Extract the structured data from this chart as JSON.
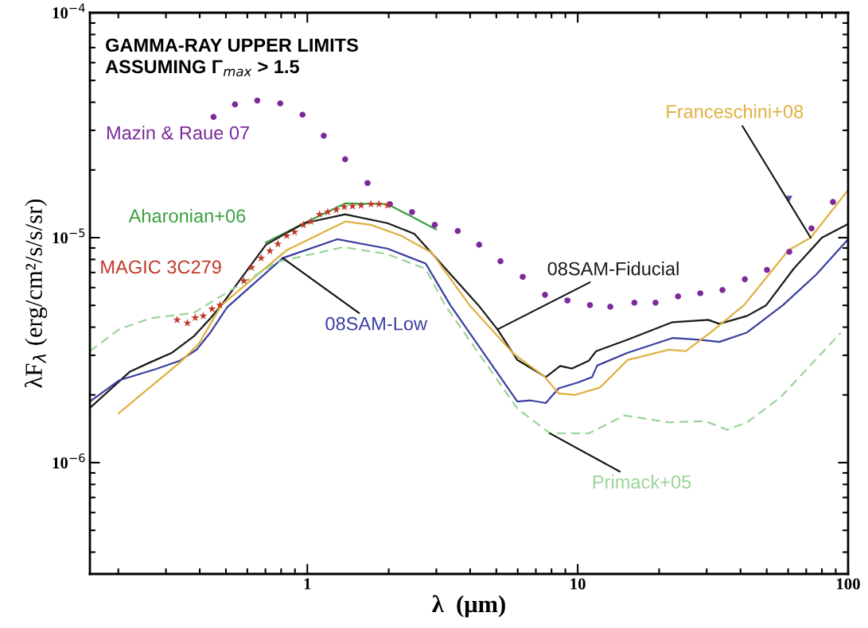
{
  "chart_data": {
    "type": "line",
    "title": "GAMMA-RAY UPPER LIMITS\nASSUMING Γ$_{max}$ > 1.5",
    "xlabel": "λ  (μm)",
    "ylabel": "λF$_{λ}$ (erg/cm²/s/s/sr)",
    "log": "xy",
    "xlim": [
      0.157,
      100
    ],
    "ylim": [
      3.2e-07,
      0.0001
    ],
    "xticks": [
      1,
      10,
      100
    ],
    "yticks": [
      {
        "value": 1e-06,
        "label": "10$^{−6}$"
      },
      {
        "value": 1e-05,
        "label": "10$^{−5}$"
      },
      {
        "value": 0.0001,
        "label": "10$^{−4}$"
      }
    ],
    "series": [
      {
        "name": "Mazin & Raue 07",
        "type": "scatter",
        "marker": "circle",
        "color": "#7b2a9a",
        "x": [
          0.45,
          0.54,
          0.653,
          0.794,
          0.96,
          1.15,
          1.38,
          1.67,
          2.02,
          2.44,
          2.96,
          3.6,
          4.32,
          5.18,
          6.26,
          7.57,
          9.16,
          11.1,
          13.2,
          16.2,
          19.4,
          23.5,
          28.4,
          34.3,
          41.5,
          50.1,
          60.6,
          73.2,
          87.9
        ],
        "values": [
          3.44e-05,
          3.91e-05,
          4.07e-05,
          3.95e-05,
          3.52e-05,
          2.84e-05,
          2.23e-05,
          1.75e-05,
          1.41e-05,
          1.3e-05,
          1.14e-05,
          1.07e-05,
          9.3e-06,
          7.86e-06,
          6.7e-06,
          5.57e-06,
          5.26e-06,
          5.01e-06,
          4.93e-06,
          5.14e-06,
          5.14e-06,
          5.48e-06,
          5.66e-06,
          5.85e-06,
          6.53e-06,
          7.19e-06,
          8.65e-06,
          1.1e-05,
          1.44e-05
        ]
      },
      {
        "type": "scatter",
        "marker": "triangle",
        "color": "#5050a0",
        "x": [
          60.6
        ],
        "values": [
          1.49e-05
        ]
      },
      {
        "name": "Aharonian+06",
        "line_style": "solid",
        "color": "#3aa040",
        "x": [
          0.703,
          0.973,
          1.38,
          1.98,
          2.99
        ],
        "values": [
          9.53e-06,
          1.16e-05,
          1.42e-05,
          1.41e-05,
          1.09e-05
        ]
      },
      {
        "name": "MAGIC 3C279",
        "type": "scatter",
        "marker": "star",
        "color": "#c0392b",
        "x": [
          0.33,
          0.36,
          0.385,
          0.412,
          0.444,
          0.475,
          0.582,
          0.622,
          0.675,
          0.727,
          0.778,
          0.839,
          0.897,
          0.967,
          1.03,
          1.11,
          1.19,
          1.28,
          1.37,
          1.47,
          1.58,
          1.72,
          1.84,
          1.98
        ],
        "values": [
          4.31e-06,
          4.17e-06,
          4.41e-06,
          4.49e-06,
          4.82e-06,
          5.01e-06,
          6.43e-06,
          7.38e-06,
          8.12e-06,
          8.73e-06,
          9.38e-06,
          1.02e-05,
          1.06e-05,
          1.14e-05,
          1.18e-05,
          1.27e-05,
          1.3e-05,
          1.33e-05,
          1.37e-05,
          1.38e-05,
          1.39e-05,
          1.41e-05,
          1.41e-05,
          1.39e-05
        ]
      },
      {
        "name": "08SAM-Fiducial",
        "line_style": "solid",
        "color": "#1a1a1a",
        "x": [
          0.157,
          0.221,
          0.262,
          0.316,
          0.38,
          0.438,
          0.481,
          0.703,
          0.973,
          1.38,
          1.98,
          2.49,
          4.29,
          5.05,
          5.98,
          7.62,
          8.61,
          9.53,
          11.0,
          11.7,
          15.3,
          22.4,
          30.4,
          33.4,
          42.3,
          49.8,
          63.1,
          80.0,
          100
        ],
        "values": [
          1.75e-06,
          2.54e-06,
          2.79e-06,
          3.08e-06,
          3.64e-06,
          4.38e-06,
          5.01e-06,
          9.3e-06,
          1.16e-05,
          1.27e-05,
          1.16e-05,
          1.04e-05,
          5.01e-06,
          3.91e-06,
          2.86e-06,
          2.4e-06,
          2.69e-06,
          2.62e-06,
          2.84e-06,
          3.13e-06,
          3.52e-06,
          4.21e-06,
          4.31e-06,
          4.14e-06,
          4.49e-06,
          5.01e-06,
          7.31e-06,
          1e-05,
          1.15e-05
        ]
      },
      {
        "name": "08SAM-Low",
        "line_style": "solid",
        "color": "#3a3fa0",
        "x": [
          0.157,
          0.201,
          0.274,
          0.338,
          0.39,
          0.438,
          0.505,
          0.811,
          1.29,
          1.98,
          2.74,
          3.38,
          5.98,
          6.7,
          7.62,
          8.5,
          10.0,
          11.3,
          11.8,
          15.3,
          22.4,
          28.2,
          33.4,
          42.3,
          57.4,
          76.3,
          100
        ],
        "values": [
          1.87e-06,
          2.32e-06,
          2.6e-06,
          2.84e-06,
          3.18e-06,
          3.79e-06,
          4.9e-06,
          8.12e-06,
          9.84e-06,
          8.94e-06,
          7.67e-06,
          5.01e-06,
          1.87e-06,
          1.89e-06,
          1.84e-06,
          2.14e-06,
          2.27e-06,
          2.4e-06,
          2.7e-06,
          3.08e-06,
          3.58e-06,
          3.52e-06,
          3.44e-06,
          3.79e-06,
          5.01e-06,
          6.86e-06,
          9.84e-06
        ]
      },
      {
        "name": "Franceschini+08",
        "line_style": "solid",
        "color": "#e0b040",
        "x": [
          0.201,
          0.338,
          0.398,
          0.481,
          0.839,
          1.38,
          1.72,
          2.22,
          2.88,
          3.98,
          5.82,
          7.52,
          8.5,
          9.8,
          12.1,
          15.3,
          21.8,
          25.1,
          31.0,
          41.2,
          60.2,
          72.7,
          100
        ],
        "values": [
          1.66e-06,
          2.79e-06,
          3.39e-06,
          5.01e-06,
          8.8e-06,
          1.18e-05,
          1.14e-05,
          1.02e-05,
          8.59e-06,
          5.01e-06,
          3.03e-06,
          2.42e-06,
          2.03e-06,
          2e-06,
          2.16e-06,
          2.86e-06,
          3.18e-06,
          3.13e-06,
          3.79e-06,
          5.01e-06,
          8.8e-06,
          1e-05,
          1.63e-05
        ]
      },
      {
        "name": "Primack+05",
        "line_style": "dashed",
        "color": "#9ad49a",
        "x": [
          0.157,
          0.201,
          0.262,
          0.38,
          0.773,
          1.36,
          1.98,
          2.74,
          3.23,
          5.98,
          7.89,
          11.0,
          14.9,
          21.8,
          29.6,
          35.7,
          42.3,
          56.2,
          94.1
        ],
        "values": [
          3.13e-06,
          3.91e-06,
          4.38e-06,
          4.63e-06,
          7.8e-06,
          9.08e-06,
          8.45e-06,
          7.26e-06,
          5.01e-06,
          1.74e-06,
          1.35e-06,
          1.35e-06,
          1.62e-06,
          1.51e-06,
          1.53e-06,
          1.4e-06,
          1.51e-06,
          1.95e-06,
          3.79e-06
        ]
      }
    ]
  }
}
